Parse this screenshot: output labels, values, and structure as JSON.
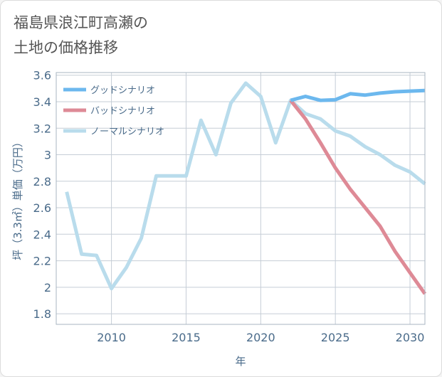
{
  "title_lines": [
    "福島県浪江町高瀬の",
    "土地の価格推移"
  ],
  "chart_data": {
    "type": "line",
    "title": "福島県浪江町高瀬の土地の価格推移",
    "xlabel": "年",
    "ylabel": "坪（3.3㎡）単価（万円）",
    "xlim": [
      2006.3,
      2031
    ],
    "ylim": [
      1.72,
      3.62
    ],
    "xticks": [
      2010,
      2015,
      2020,
      2025,
      2030
    ],
    "xtick_labels": [
      "2010",
      "2015",
      "2020",
      "2025",
      "2030"
    ],
    "yticks": [
      1.8,
      2.0,
      2.2,
      2.4,
      2.6,
      2.8,
      3.0,
      3.2,
      3.4,
      3.6
    ],
    "ytick_labels": [
      "1.8",
      "2",
      "2.2",
      "2.4",
      "2.6",
      "2.8",
      "3",
      "3.2",
      "3.4",
      "3.6"
    ],
    "grid": true,
    "legend_position": "top-left",
    "series": [
      {
        "name": "グッドシナリオ",
        "color": "#6cb8ee",
        "x": [
          2022,
          2023,
          2024,
          2025,
          2026,
          2027,
          2028,
          2029,
          2030,
          2031
        ],
        "values": [
          3.41,
          3.44,
          3.41,
          3.415,
          3.46,
          3.45,
          3.465,
          3.475,
          3.48,
          3.485
        ]
      },
      {
        "name": "バッドシナリオ",
        "color": "#de8a96",
        "x": [
          2022,
          2023,
          2024,
          2025,
          2026,
          2027,
          2028,
          2029,
          2030,
          2031
        ],
        "values": [
          3.41,
          3.27,
          3.09,
          2.9,
          2.74,
          2.6,
          2.46,
          2.27,
          2.11,
          1.95
        ]
      },
      {
        "name": "ノーマルシナリオ",
        "color": "#b9dcec",
        "x": [
          2007,
          2008,
          2009,
          2010,
          2011,
          2012,
          2013,
          2014,
          2015,
          2016,
          2017,
          2018,
          2019,
          2020,
          2021,
          2022,
          2023,
          2024,
          2025,
          2026,
          2027,
          2028,
          2029,
          2030,
          2031
        ],
        "values": [
          2.72,
          2.25,
          2.24,
          1.99,
          2.15,
          2.37,
          2.84,
          2.84,
          2.84,
          3.26,
          3.0,
          3.39,
          3.54,
          3.44,
          3.09,
          3.41,
          3.31,
          3.27,
          3.18,
          3.14,
          3.06,
          3.0,
          2.92,
          2.87,
          2.78
        ]
      }
    ]
  }
}
